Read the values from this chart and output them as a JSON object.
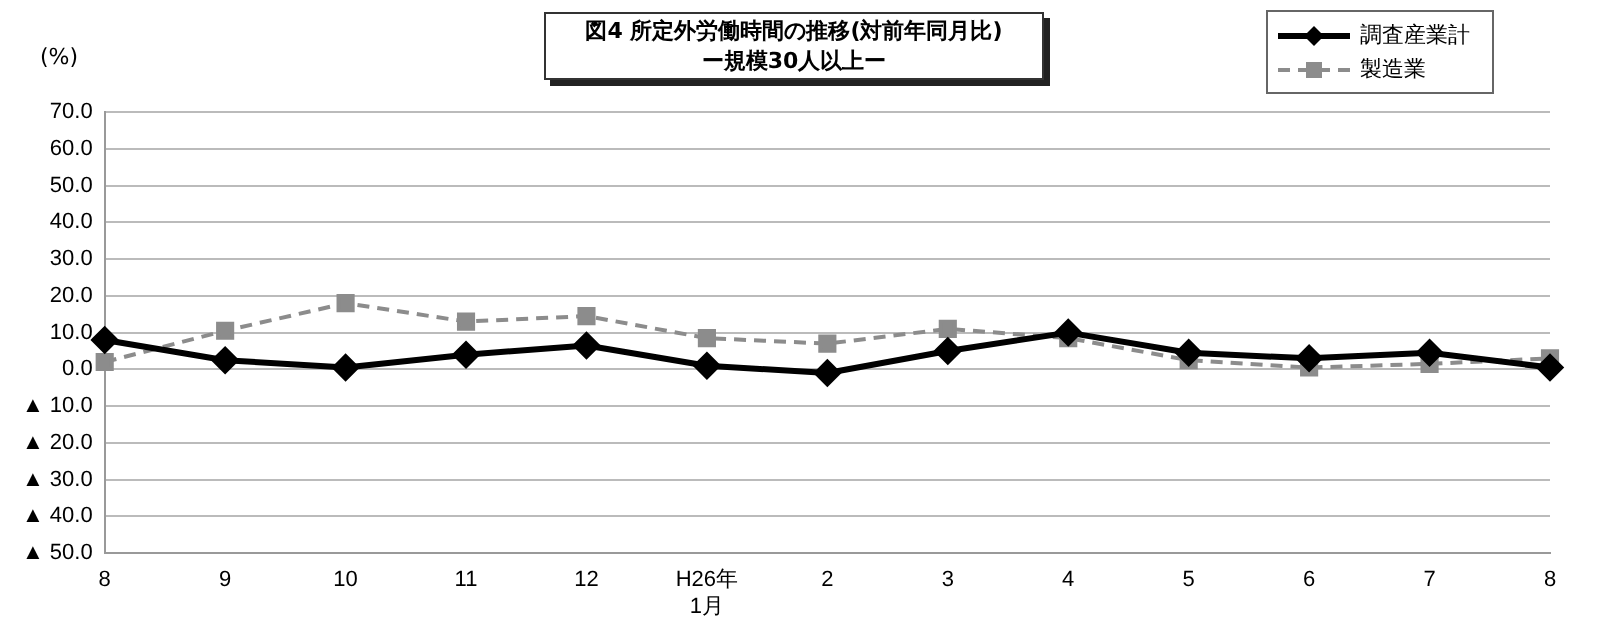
{
  "chart_data": {
    "type": "line",
    "title": "図4 所定外労働時間の推移(対前年同月比)",
    "subtitle": "ー規模30人以上ー",
    "ylabel": "(%)",
    "categories": [
      "8",
      "9",
      "10",
      "11",
      "12",
      "H26年\n1月",
      "2",
      "3",
      "4",
      "5",
      "6",
      "7",
      "8"
    ],
    "series": [
      {
        "name": "調査産業計",
        "color": "#000000",
        "marker": "diamond",
        "line_style": "solid",
        "values": [
          8.0,
          2.5,
          0.5,
          4.0,
          6.5,
          1.0,
          -1.0,
          5.0,
          10.0,
          4.5,
          3.0,
          4.5,
          0.5
        ]
      },
      {
        "name": "製造業",
        "color": "#8c8c8c",
        "marker": "square",
        "line_style": "dashed",
        "values": [
          2.0,
          10.5,
          18.0,
          13.0,
          14.5,
          8.5,
          7.0,
          11.0,
          8.5,
          2.5,
          0.5,
          1.5,
          3.0
        ]
      }
    ],
    "ylim": [
      -50,
      70
    ],
    "yticks": [
      {
        "value": -50,
        "label": "▲ 50.0"
      },
      {
        "value": -40,
        "label": "▲ 40.0"
      },
      {
        "value": -30,
        "label": "▲ 30.0"
      },
      {
        "value": -20,
        "label": "▲ 20.0"
      },
      {
        "value": -10,
        "label": "▲ 10.0"
      },
      {
        "value": 0,
        "label": "0.0"
      },
      {
        "value": 10,
        "label": "10.0"
      },
      {
        "value": 20,
        "label": "20.0"
      },
      {
        "value": 30,
        "label": "30.0"
      },
      {
        "value": 40,
        "label": "40.0"
      },
      {
        "value": 50,
        "label": "50.0"
      },
      {
        "value": 60,
        "label": "60.0"
      },
      {
        "value": 70,
        "label": "70.0"
      }
    ],
    "grid": "y",
    "legend": "top right"
  }
}
